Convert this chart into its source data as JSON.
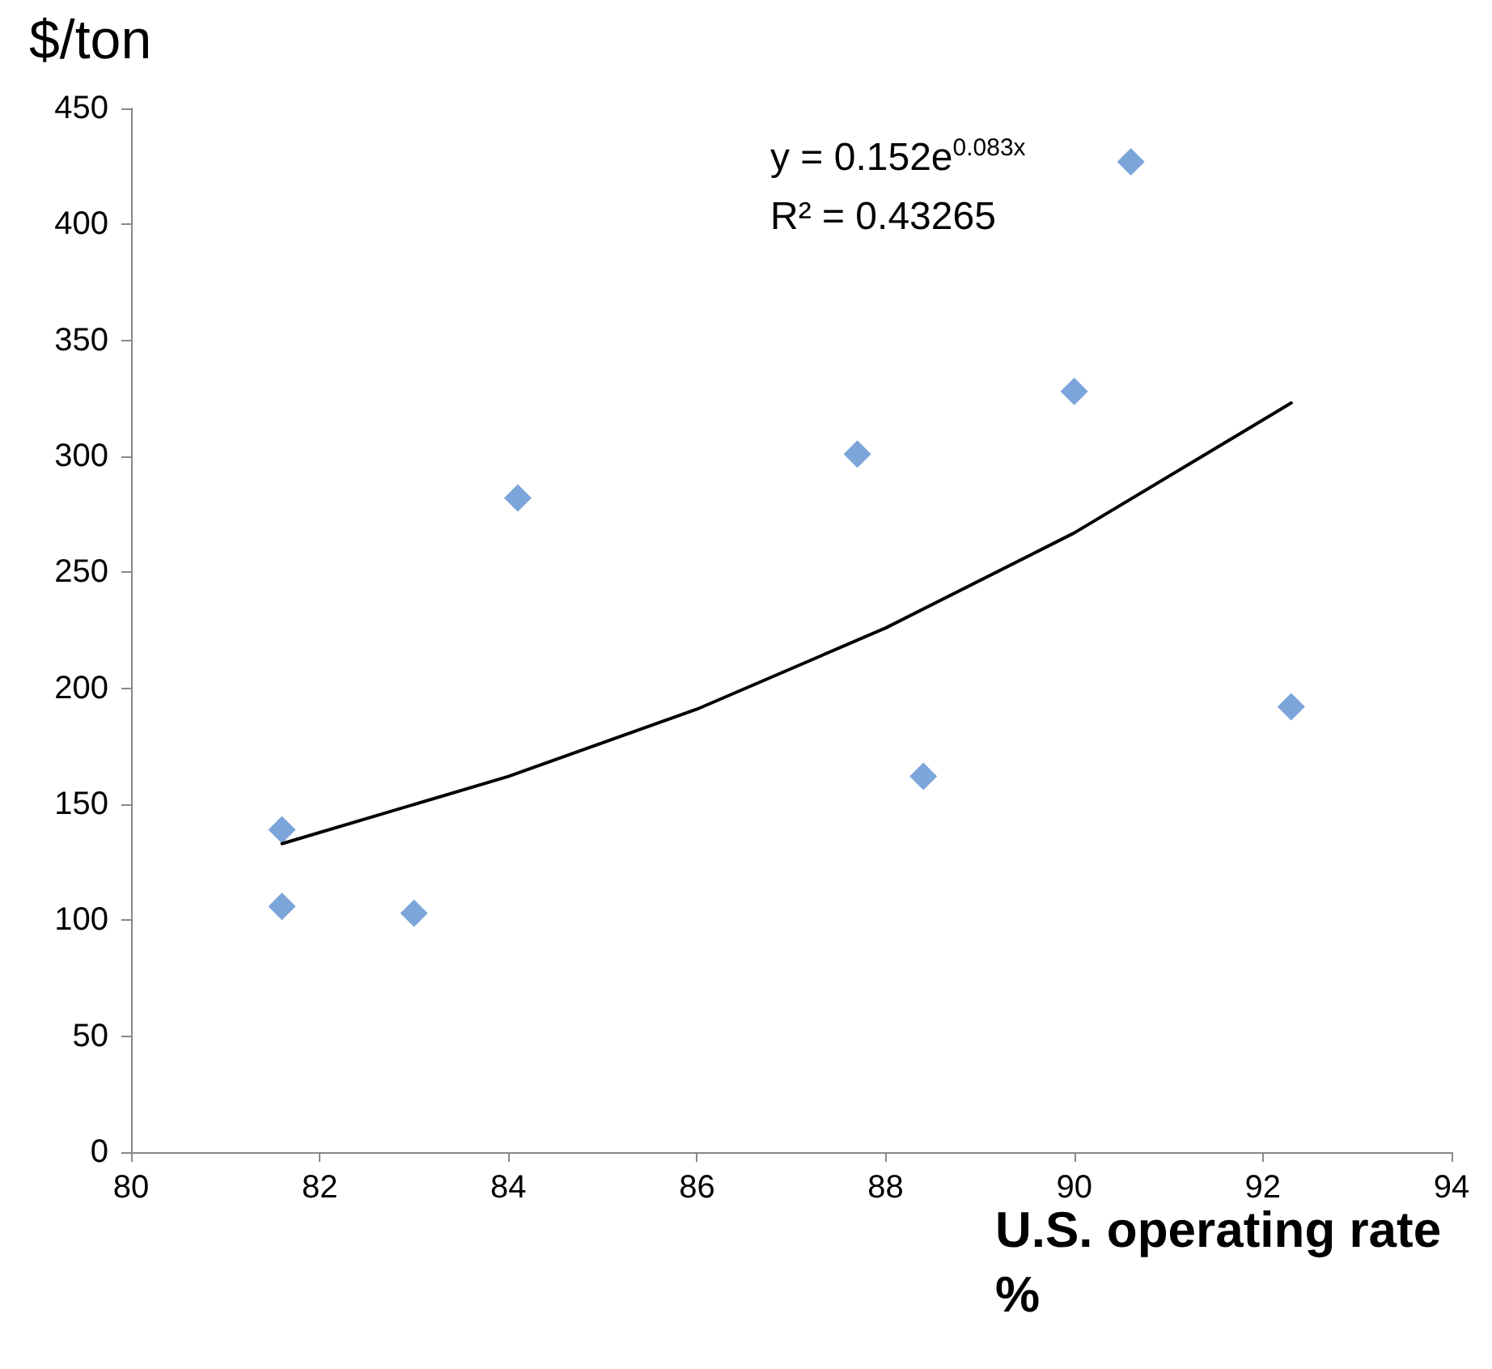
{
  "chart_data": {
    "type": "scatter",
    "xlabel": "U.S. operating rate %",
    "ylabel": "$/ton",
    "annotations": [
      "y = 0.152e$^{0.083x}$",
      "R² = 0.43265"
    ],
    "x": [
      81.6,
      81.6,
      83.0,
      84.1,
      87.7,
      88.4,
      90.0,
      90.6,
      92.3
    ],
    "series": [
      {
        "color": "#5b8fcf",
        "values": [
          139,
          106,
          103,
          282,
          301,
          162,
          328,
          427,
          192
        ],
        "marker": "diamond"
      },
      {
        "type": "line",
        "color": "#000000",
        "x": [
          81.6,
          84,
          86,
          88,
          90,
          92.3
        ],
        "values": [
          133,
          162,
          191,
          226,
          267,
          323
        ],
        "marker": "none",
        "line_style": "solid"
      }
    ],
    "xlim": [
      80,
      94
    ],
    "xticks": [
      80,
      82,
      84,
      86,
      88,
      90,
      92,
      94
    ],
    "ylim": [
      0,
      450
    ],
    "yticks": [
      0,
      50,
      100,
      150,
      200,
      250,
      300,
      350,
      400,
      450
    ],
    "grid": false
  }
}
